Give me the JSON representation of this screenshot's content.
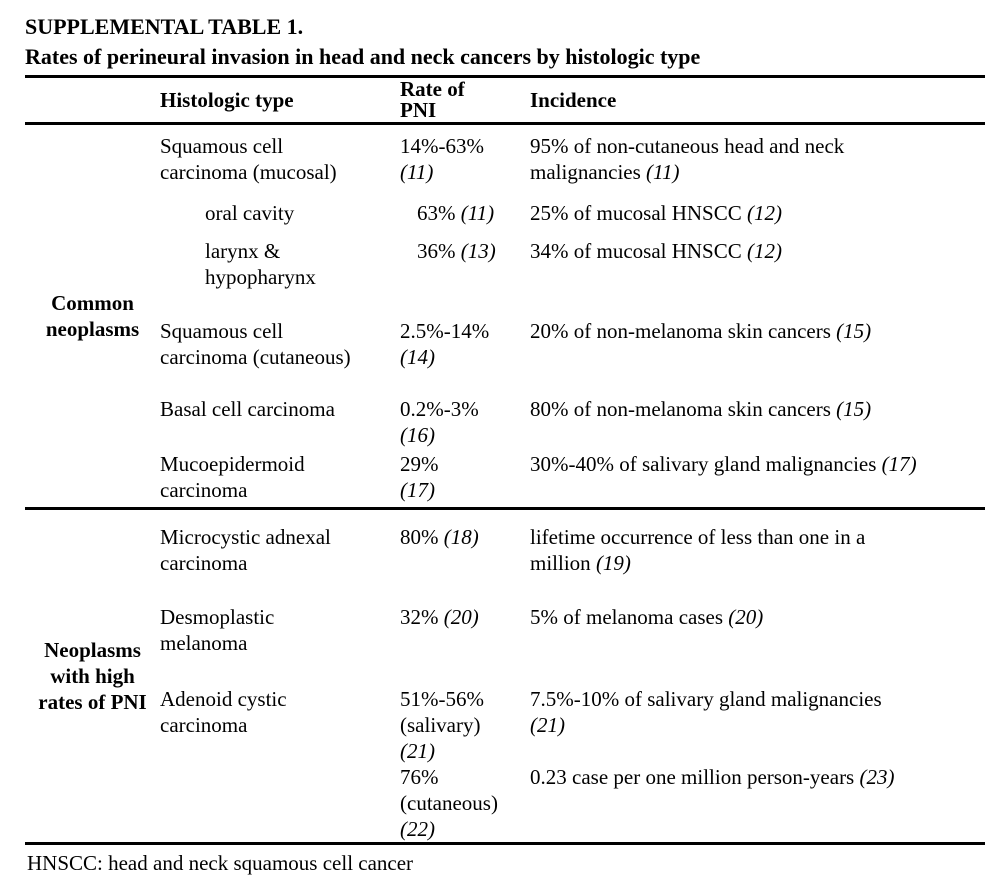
{
  "page": {
    "title": "SUPPLEMENTAL TABLE 1.",
    "subtitle": "Rates of perineural invasion in head and neck cancers by histologic type",
    "footnote": "HNSCC: head and neck squamous cell cancer"
  },
  "columns": {
    "group": "",
    "histology": "Histologic type",
    "rate": "Rate of\nPNI",
    "incidence": "Incidence"
  },
  "sections": [
    {
      "group_label": "Common\nneoplasms",
      "rows": [
        {
          "indent": false,
          "histology": [
            {
              "t": "Squamous cell",
              "br": true
            },
            {
              "t": "carcinoma (mucosal)"
            }
          ],
          "rate": [
            {
              "t": "14%-63%",
              "br": true
            },
            {
              "t": "(11)",
              "i": true
            }
          ],
          "incidence": [
            {
              "t": "95% of non-cutaneous head and neck",
              "br": true
            },
            {
              "t": "malignancies "
            },
            {
              "t": "(11)",
              "i": true
            }
          ]
        },
        {
          "indent": true,
          "histology": [
            {
              "t": "oral cavity"
            }
          ],
          "rate": [
            {
              "t": "63% "
            },
            {
              "t": "(11)",
              "i": true
            }
          ],
          "incidence": [
            {
              "t": "25% of mucosal HNSCC "
            },
            {
              "t": "(12)",
              "i": true
            }
          ]
        },
        {
          "indent": true,
          "histology": [
            {
              "t": "larynx &",
              "br": true
            },
            {
              "t": "hypopharynx"
            }
          ],
          "rate": [
            {
              "t": "36% "
            },
            {
              "t": "(13)",
              "i": true
            }
          ],
          "incidence": [
            {
              "t": "34% of mucosal HNSCC "
            },
            {
              "t": "(12)",
              "i": true
            }
          ]
        },
        {
          "indent": false,
          "histology": [
            {
              "t": "Squamous cell",
              "br": true
            },
            {
              "t": "carcinoma (cutaneous)"
            }
          ],
          "rate": [
            {
              "t": "2.5%-14%",
              "br": true
            },
            {
              "t": "(14)",
              "i": true
            }
          ],
          "incidence": [
            {
              "t": "20% of non-melanoma skin cancers "
            },
            {
              "t": "(15)",
              "i": true
            }
          ]
        },
        {
          "indent": false,
          "histology": [
            {
              "t": "Basal cell carcinoma"
            }
          ],
          "rate": [
            {
              "t": "0.2%-3%",
              "br": true
            },
            {
              "t": "(16)",
              "i": true
            }
          ],
          "incidence": [
            {
              "t": "80% of non-melanoma skin cancers "
            },
            {
              "t": "(15)",
              "i": true
            }
          ]
        },
        {
          "indent": false,
          "histology": [
            {
              "t": "Mucoepidermoid",
              "br": true
            },
            {
              "t": "carcinoma"
            }
          ],
          "rate": [
            {
              "t": "29%",
              "br": true
            },
            {
              "t": "(17)",
              "i": true
            }
          ],
          "incidence": [
            {
              "t": "30%-40% of salivary gland malignancies "
            },
            {
              "t": "(17)",
              "i": true
            }
          ]
        }
      ]
    },
    {
      "group_label": "Neoplasms\nwith high\nrates of PNI",
      "rows": [
        {
          "indent": false,
          "histology": [
            {
              "t": "Microcystic adnexal",
              "br": true
            },
            {
              "t": "carcinoma"
            }
          ],
          "rate": [
            {
              "t": "80% "
            },
            {
              "t": "(18)",
              "i": true
            }
          ],
          "incidence": [
            {
              "t": "lifetime occurrence of less than one in a",
              "br": true
            },
            {
              "t": "million "
            },
            {
              "t": "(19)",
              "i": true
            }
          ]
        },
        {
          "indent": false,
          "histology": [
            {
              "t": "Desmoplastic",
              "br": true
            },
            {
              "t": "melanoma"
            }
          ],
          "rate": [
            {
              "t": "32% "
            },
            {
              "t": "(20)",
              "i": true
            }
          ],
          "incidence": [
            {
              "t": "5% of melanoma cases "
            },
            {
              "t": "(20)",
              "i": true
            }
          ]
        },
        {
          "indent": false,
          "histology": [
            {
              "t": "Adenoid cystic",
              "br": true
            },
            {
              "t": "carcinoma"
            }
          ],
          "rate": [
            {
              "t": "51%-56%",
              "br": true
            },
            {
              "t": "(salivary)",
              "br": true
            },
            {
              "t": "(21)",
              "i": true
            }
          ],
          "incidence": [
            {
              "t": "7.5%-10% of salivary gland malignancies",
              "br": true
            },
            {
              "t": "(21)",
              "i": true
            }
          ]
        },
        {
          "indent": false,
          "histology": [],
          "rate": [
            {
              "t": "76%",
              "br": true
            },
            {
              "t": "(cutaneous)",
              "br": true
            },
            {
              "t": "(22)",
              "i": true
            }
          ],
          "incidence": [
            {
              "t": "0.23 case per one million person-years "
            },
            {
              "t": "(23)",
              "i": true
            }
          ]
        }
      ]
    }
  ]
}
